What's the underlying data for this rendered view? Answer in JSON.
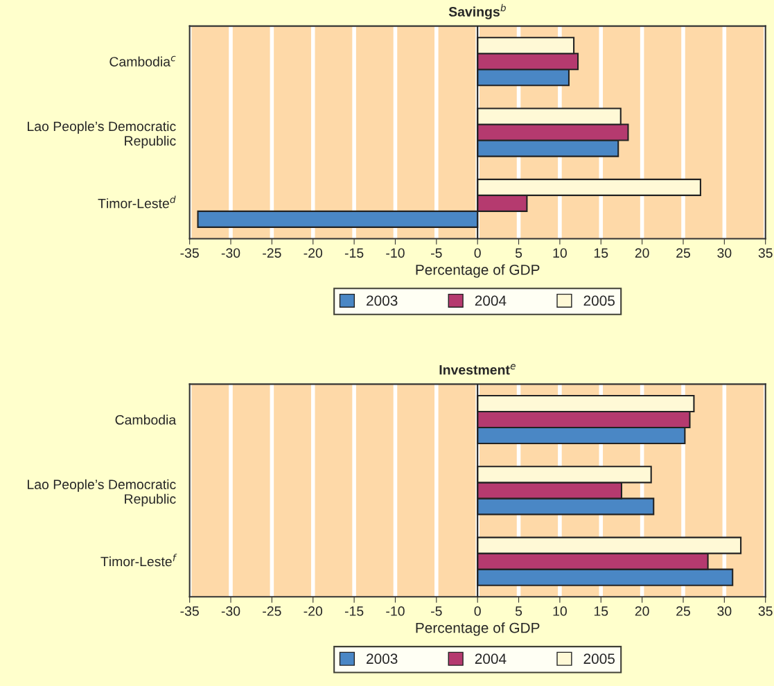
{
  "chart_data": [
    {
      "type": "bar",
      "orientation": "horizontal",
      "title": "Savings$^{b}$",
      "xlabel": "Percentage of GDP",
      "categories": [
        "Cambodia$^{c}$",
        "Lao People’s Democratic\nRepublic",
        "Timor-Leste$^{d}$"
      ],
      "series": [
        {
          "name": "2003",
          "color": "#4a87c5",
          "values": [
            11.1,
            17.1,
            -34.0
          ]
        },
        {
          "name": "2004",
          "color": "#b53a6f",
          "values": [
            12.2,
            18.3,
            6.0
          ]
        },
        {
          "name": "2005",
          "color": "#fff9d6",
          "values": [
            11.7,
            17.4,
            27.1
          ]
        }
      ],
      "xlim": [
        -35,
        35
      ],
      "xticks": [
        -35,
        -30,
        -25,
        -20,
        -15,
        -10,
        -5,
        0,
        5,
        10,
        15,
        20,
        25,
        30,
        35
      ],
      "ref_lines": [
        {
          "axis": "x",
          "value": 0,
          "color": "#222222"
        }
      ],
      "grid": "x",
      "legend": "bottom"
    },
    {
      "type": "bar",
      "orientation": "horizontal",
      "title": "Investment$^{e}$",
      "xlabel": "Percentage of GDP",
      "categories": [
        "Cambodia",
        "Lao People’s Democratic\nRepublic",
        "Timor-Leste$^{f}$"
      ],
      "series": [
        {
          "name": "2003",
          "color": "#4a87c5",
          "values": [
            25.2,
            21.4,
            31.0
          ]
        },
        {
          "name": "2004",
          "color": "#b53a6f",
          "values": [
            25.8,
            17.5,
            28.0
          ]
        },
        {
          "name": "2005",
          "color": "#fff9d6",
          "values": [
            26.3,
            21.1,
            32.0
          ]
        }
      ],
      "xlim": [
        -35,
        35
      ],
      "xticks": [
        -35,
        -30,
        -25,
        -20,
        -15,
        -10,
        -5,
        0,
        5,
        10,
        15,
        20,
        25,
        30,
        35
      ],
      "ref_lines": [
        {
          "axis": "x",
          "value": 0,
          "color": "#222222"
        }
      ],
      "grid": "x",
      "legend": "bottom"
    }
  ]
}
